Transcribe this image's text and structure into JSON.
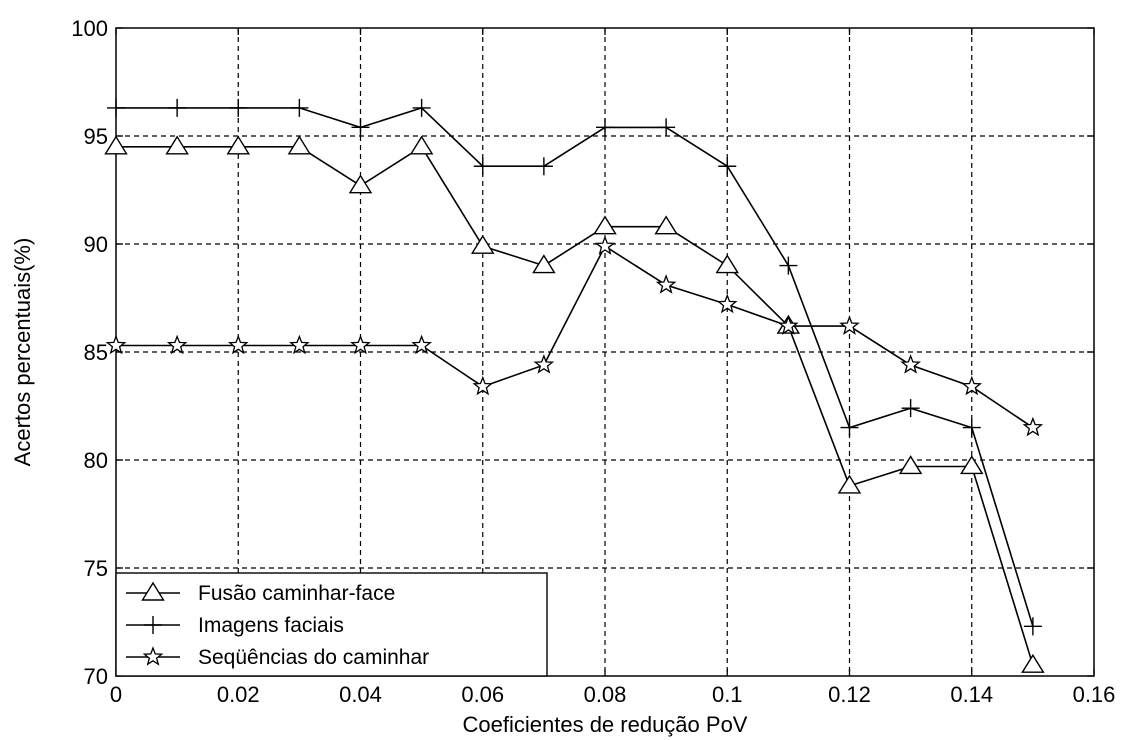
{
  "chart_data": {
    "type": "line",
    "title": "",
    "xlabel": "Coeficientes de redução PoV",
    "ylabel": "Acertos percentuais(%)",
    "xlim": [
      0,
      0.16
    ],
    "ylim": [
      70,
      100
    ],
    "xticks": [
      "0",
      "0.02",
      "0.04",
      "0.06",
      "0.08",
      "0.1",
      "0.12",
      "0.14",
      "0.16"
    ],
    "yticks": [
      "70",
      "75",
      "80",
      "85",
      "90",
      "95",
      "100"
    ],
    "grid": true,
    "legend_position": "bottom-left",
    "x": [
      0,
      0.01,
      0.02,
      0.03,
      0.04,
      0.05,
      0.06,
      0.07,
      0.08,
      0.09,
      0.1,
      0.11,
      0.12,
      0.13,
      0.14,
      0.15
    ],
    "series": [
      {
        "name": "Fusão caminhar-face",
        "marker": "triangle",
        "values": [
          94.5,
          94.5,
          94.5,
          94.5,
          92.7,
          94.5,
          89.9,
          89.0,
          90.8,
          90.8,
          89.0,
          86.2,
          78.8,
          79.7,
          79.7,
          70.5
        ]
      },
      {
        "name": "Imagens faciais",
        "marker": "plus",
        "values": [
          96.3,
          96.3,
          96.3,
          96.3,
          95.4,
          96.3,
          93.6,
          93.6,
          95.4,
          95.4,
          93.6,
          89.0,
          81.5,
          82.4,
          81.5,
          72.3
        ]
      },
      {
        "name": "Seqüências do caminhar",
        "marker": "star",
        "values": [
          85.3,
          85.3,
          85.3,
          85.3,
          85.3,
          85.3,
          83.4,
          84.4,
          89.9,
          88.1,
          87.2,
          86.2,
          86.2,
          84.4,
          83.4,
          81.5
        ]
      }
    ]
  }
}
